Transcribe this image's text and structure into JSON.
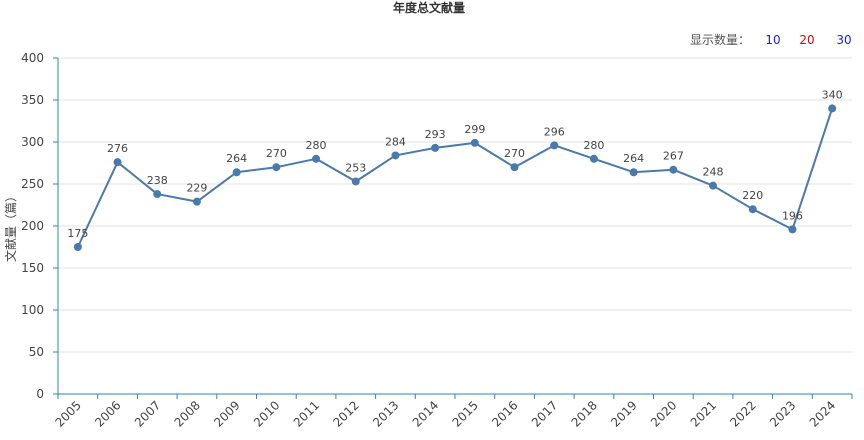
{
  "controls": {
    "label": "显示数量：",
    "options": [
      {
        "label": "10",
        "color": "#1a1aff"
      },
      {
        "label": "20",
        "color": "#e00000"
      },
      {
        "label": "30",
        "color": "#1a1aff"
      }
    ]
  },
  "chart_data": {
    "type": "line",
    "title": "年度总文献量",
    "xlabel": "",
    "ylabel": "文献量（篇）",
    "ylim": [
      0,
      400
    ],
    "yticks": [
      0,
      50,
      100,
      150,
      200,
      250,
      300,
      350,
      400
    ],
    "grid": true,
    "categories": [
      "2005",
      "2006",
      "2007",
      "2008",
      "2009",
      "2010",
      "2011",
      "2012",
      "2013",
      "2014",
      "2015",
      "2016",
      "2017",
      "2018",
      "2019",
      "2020",
      "2021",
      "2022",
      "2023",
      "2024"
    ],
    "series": [
      {
        "color": "#4a7aab",
        "values": [
          175,
          276,
          238,
          229,
          264,
          270,
          280,
          253,
          284,
          293,
          299,
          270,
          296,
          280,
          264,
          267,
          248,
          220,
          196,
          340
        ]
      }
    ]
  }
}
